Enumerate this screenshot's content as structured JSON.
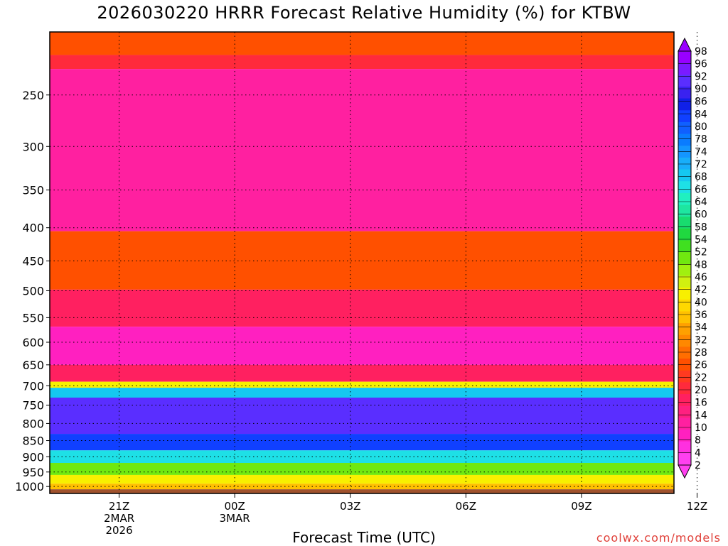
{
  "chart_data": {
    "type": "heatmap",
    "title": "2026030220 HRRR Forecast Relative Humidity (%) for KTBW",
    "xlabel": "Forecast Time (UTC)",
    "ylabel": "",
    "y_scale": "log",
    "y_reversed": true,
    "ylim": [
      1025,
      200
    ],
    "xlim": [
      -1.8,
      14.4
    ],
    "y_ticks": [
      250,
      300,
      350,
      400,
      450,
      500,
      550,
      600,
      650,
      700,
      750,
      800,
      850,
      900,
      950,
      1000
    ],
    "x_ticks": [
      {
        "x": 0,
        "lines": [
          "21Z",
          "2MAR",
          "2026"
        ]
      },
      {
        "x": 3,
        "lines": [
          "00Z",
          "3MAR"
        ]
      },
      {
        "x": 6,
        "lines": [
          "03Z"
        ]
      },
      {
        "x": 9,
        "lines": [
          "06Z"
        ]
      },
      {
        "x": 12,
        "lines": [
          "09Z"
        ]
      },
      {
        "x": 15,
        "lines": [
          "12Z"
        ]
      }
    ],
    "grid": true,
    "colorbar": {
      "labels": [
        98,
        96,
        92,
        90,
        86,
        84,
        80,
        78,
        74,
        72,
        68,
        66,
        64,
        60,
        58,
        54,
        52,
        48,
        46,
        42,
        40,
        36,
        34,
        32,
        28,
        26,
        22,
        20,
        16,
        14,
        10,
        8,
        4,
        2
      ],
      "colors": [
        "#9900ff",
        "#7a1aff",
        "#5a2eff",
        "#3a22f0",
        "#1020e8",
        "#1040ff",
        "#1060ff",
        "#0a7cff",
        "#1496ff",
        "#18aefa",
        "#15c8f0",
        "#1ee0e6",
        "#20f0c0",
        "#1ee6a0",
        "#18dc6e",
        "#20d840",
        "#40e020",
        "#70e810",
        "#a0f010",
        "#d0f010",
        "#f8f000",
        "#ffd800",
        "#ffc000",
        "#ffa000",
        "#ff8800",
        "#ff6e00",
        "#ff5000",
        "#ff3a20",
        "#ff2a3c",
        "#ff2060",
        "#ff2080",
        "#ff20a0",
        "#ff20c0",
        "#ff30e0",
        "#ff40f0"
      ]
    },
    "layers": [
      {
        "p_top": 200,
        "p_bottom": 217,
        "rh": 22
      },
      {
        "p_top": 217,
        "p_bottom": 228,
        "rh": 16
      },
      {
        "p_top": 228,
        "p_bottom": 405,
        "rh": 8
      },
      {
        "p_top": 405,
        "p_bottom": 498,
        "rh": 22
      },
      {
        "p_top": 498,
        "p_bottom": 568,
        "rh": 14
      },
      {
        "p_top": 568,
        "p_bottom": 650,
        "rh": 6
      },
      {
        "p_top": 650,
        "p_bottom": 690,
        "rh": 14
      },
      {
        "p_top": 690,
        "p_bottom": 705,
        "rh": 40
      },
      {
        "p_top": 705,
        "p_bottom": 730,
        "rh": 70
      },
      {
        "p_top": 730,
        "p_bottom": 830,
        "rh": 92
      },
      {
        "p_top": 830,
        "p_bottom": 880,
        "rh": 84
      },
      {
        "p_top": 880,
        "p_bottom": 920,
        "rh": 66
      },
      {
        "p_top": 920,
        "p_bottom": 960,
        "rh": 50
      },
      {
        "p_top": 960,
        "p_bottom": 990,
        "rh": 40
      },
      {
        "p_top": 990,
        "p_bottom": 1010,
        "rh": 34
      }
    ],
    "ground_level_hpa": 1010
  },
  "credit": "coolwx.com/models"
}
